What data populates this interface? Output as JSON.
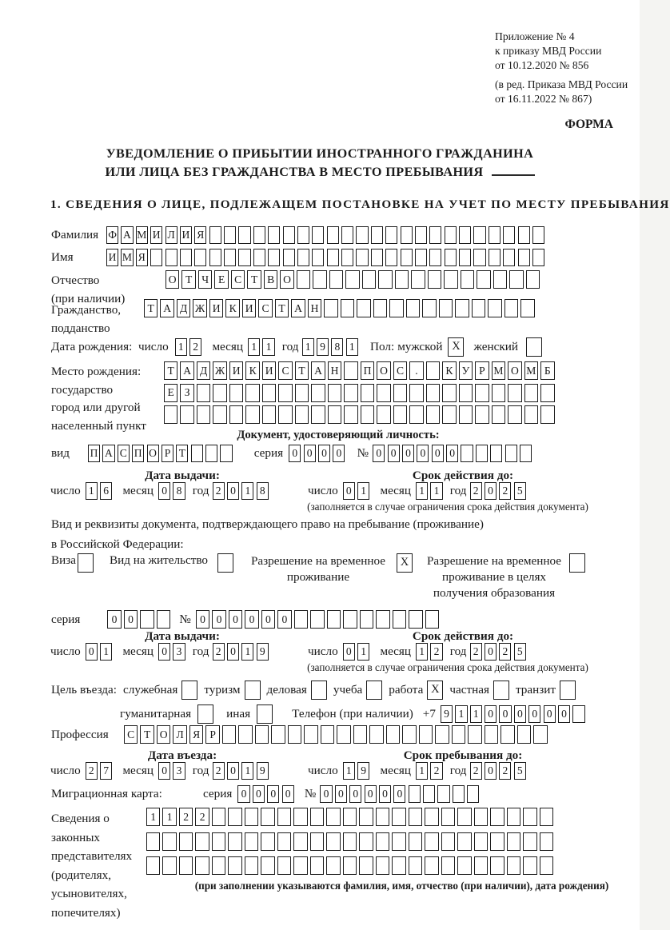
{
  "header": {
    "appendix_line1": "Приложение № 4",
    "appendix_line2": "к приказу МВД России",
    "appendix_line3": "от 10.12.2020 № 856",
    "revision_line1": "(в ред. Приказа МВД России",
    "revision_line2": "от 16.11.2022 № 867)",
    "form_label": "ФОРМА"
  },
  "title": {
    "line1": "УВЕДОМЛЕНИЕ О ПРИБЫТИИ ИНОСТРАННОГО ГРАЖДАНИНА",
    "line2": "ИЛИ ЛИЦА БЕЗ ГРАЖДАНСТВА В МЕСТО ПРЕБЫВАНИЯ"
  },
  "section1_heading": "1. СВЕДЕНИЯ О ЛИЦЕ, ПОДЛЕЖАЩЕМ ПОСТАНОВКЕ НА УЧЕТ ПО МЕСТУ ПРЕБЫВАНИЯ",
  "surname": {
    "label": "Фамилия",
    "value": "ФАМИЛИЯ",
    "cells": 30
  },
  "firstname": {
    "label": "Имя",
    "value": "ИМЯ",
    "cells": 30
  },
  "patronymic": {
    "label1": "Отчество",
    "label2": "(при наличии)",
    "value": "ОТЧЕСТВО",
    "cells": 23
  },
  "citizenship": {
    "label1": "Гражданство,",
    "label2": "подданство",
    "value": "ТАДЖИКИСТАН",
    "cells": 24
  },
  "birth_date": {
    "label": "Дата рождения:",
    "day_label": "число",
    "day": "12",
    "month_label": "месяц",
    "month": "11",
    "year_label": "год",
    "year": "1981"
  },
  "sex": {
    "label": "Пол:",
    "male_label": "мужской",
    "male_mark": "X",
    "female_label": "женский",
    "female_mark": ""
  },
  "birth_place": {
    "label1": "Место рождения:",
    "label2": "государство",
    "label3": "город или другой",
    "label4": "населенный пункт",
    "row1": {
      "value": "ТАДЖИКИСТАН ПОС. КУРМОМБ",
      "cells": 24
    },
    "row2": {
      "value": "ЕЗ",
      "cells": 24
    },
    "row3": {
      "value": "",
      "cells": 24
    }
  },
  "identity": {
    "heading": "Документ, удостоверяющий личность:",
    "type_label": "вид",
    "type": {
      "value": "ПАСПОРТ",
      "cells": 10
    },
    "series_label": "серия",
    "series": {
      "value": "0000",
      "cells": 4
    },
    "number_label": "№",
    "number": {
      "value": "000000",
      "cells": 11
    },
    "issue": {
      "heading": "Дата выдачи:",
      "day_label": "число",
      "day": "16",
      "month_label": "месяц",
      "month": "08",
      "year_label": "год",
      "year": "2018"
    },
    "valid": {
      "heading": "Срок действия до:",
      "day_label": "число",
      "day": "01",
      "month_label": "месяц",
      "month": "11",
      "year_label": "год",
      "year": "2025"
    },
    "note": "(заполняется в случае ограничения срока действия документа)"
  },
  "residence": {
    "intro1": "Вид и реквизиты документа, подтверждающего право на пребывание (проживание)",
    "intro2": "в Российской Федерации:",
    "opt_visa": {
      "label": "Виза",
      "mark": ""
    },
    "opt_permit": {
      "label": "Вид на жительство",
      "mark": ""
    },
    "opt_temp": {
      "label1": "Разрешение на временное",
      "label2": "проживание",
      "mark": "X"
    },
    "opt_edu": {
      "label1": "Разрешение на временное",
      "label2": "проживание в целях",
      "label3": "получения образования",
      "mark": ""
    },
    "series_label": "серия",
    "series": {
      "value": "00",
      "cells": 4
    },
    "number_label": "№",
    "number": {
      "value": "000000",
      "cells": 15
    },
    "issue": {
      "heading": "Дата выдачи:",
      "day_label": "число",
      "day": "01",
      "month_label": "месяц",
      "month": "03",
      "year_label": "год",
      "year": "2019"
    },
    "valid": {
      "heading": "Срок действия до:",
      "day_label": "число",
      "day": "01",
      "month_label": "месяц",
      "month": "12",
      "year_label": "год",
      "year": "2025"
    },
    "note": "(заполняется в случае ограничения срока действия документа)"
  },
  "purpose": {
    "label": "Цель въезда:",
    "opts1": [
      {
        "label": "служебная",
        "mark": ""
      },
      {
        "label": "туризм",
        "mark": ""
      },
      {
        "label": "деловая",
        "mark": ""
      },
      {
        "label": "учеба",
        "mark": ""
      },
      {
        "label": "работа",
        "mark": "X"
      },
      {
        "label": "частная",
        "mark": ""
      },
      {
        "label": "транзит",
        "mark": ""
      }
    ],
    "opts2": [
      {
        "label": "гуманитарная",
        "mark": ""
      },
      {
        "label": "иная",
        "mark": ""
      }
    ],
    "phone_label": "Телефон (при наличии)",
    "phone_prefix": "+7",
    "phone": {
      "value": "911000000",
      "cells": 10
    }
  },
  "profession": {
    "label": "Профессия",
    "value": "СТОЛЯР",
    "cells": 26
  },
  "entry": {
    "heading": "Дата въезда:",
    "day_label": "число",
    "day": "27",
    "month_label": "месяц",
    "month": "03",
    "year_label": "год",
    "year": "2019"
  },
  "stay": {
    "heading": "Срок пребывания до:",
    "day_label": "число",
    "day": "19",
    "month_label": "месяц",
    "month": "12",
    "year_label": "год",
    "year": "2025"
  },
  "migration_card": {
    "label": "Миграционная карта:",
    "series_label": "серия",
    "series": {
      "value": "0000",
      "cells": 4
    },
    "number_label": "№",
    "number": {
      "value": "000000",
      "cells": 11
    }
  },
  "representatives": {
    "label1": "Сведения о",
    "label2": "законных",
    "label3": "представителях",
    "label4": "(родителях,",
    "label5": "усыновителях,",
    "label6": "попечителях)",
    "row1": {
      "value": "1122",
      "cells": 25
    },
    "row2": {
      "value": "",
      "cells": 25
    },
    "row3": {
      "value": "",
      "cells": 25
    },
    "note": "(при заполнении указываются фамилия, имя, отчество (при наличии), дата рождения)"
  }
}
